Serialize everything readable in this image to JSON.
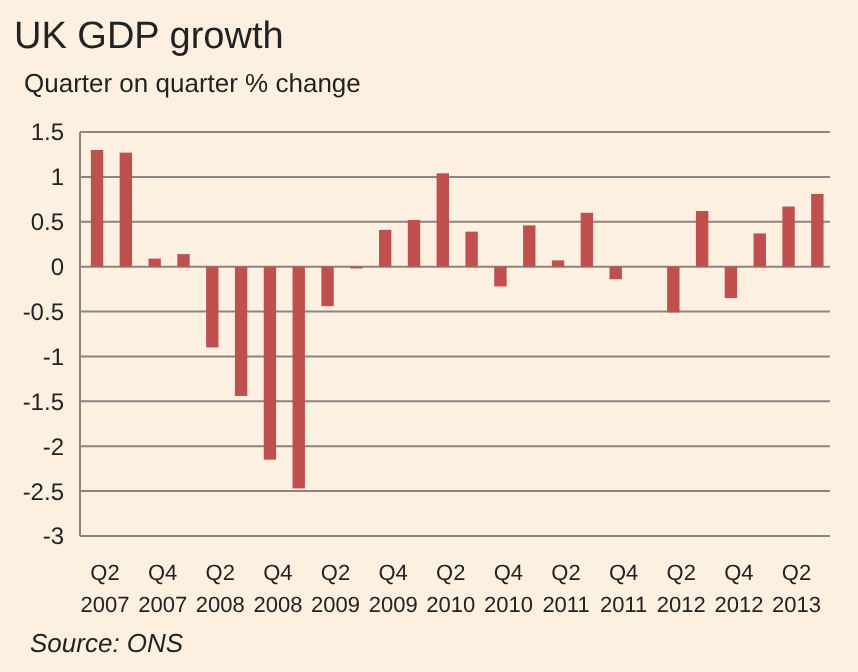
{
  "chart_data": {
    "type": "bar",
    "title": "UK GDP growth",
    "subtitle": "Quarter on quarter % change",
    "categories": [
      "Q2 2007",
      null,
      "Q4 2007",
      null,
      "Q2 2008",
      null,
      "Q4 2008",
      null,
      "Q2 2009",
      null,
      "Q4 2009",
      null,
      "Q2 2010",
      null,
      "Q4 2010",
      null,
      "Q2 2011",
      null,
      "Q4 2011",
      null,
      "Q2 2012",
      null,
      "Q4 2012",
      null,
      "Q2 2013",
      null
    ],
    "values": [
      1.3,
      1.27,
      0.09,
      0.14,
      -0.9,
      -1.44,
      -2.15,
      -2.47,
      -0.44,
      -0.02,
      0.41,
      0.52,
      1.04,
      0.39,
      -0.22,
      0.46,
      0.07,
      0.6,
      -0.14,
      0,
      -0.51,
      0.62,
      -0.35,
      0.37,
      0.67,
      0.81
    ],
    "color": "#c0504d",
    "ylim": [
      -3,
      1.5
    ],
    "yticks": [
      -3,
      -2.5,
      -2,
      -1.5,
      -1,
      -0.5,
      0,
      0.5,
      1,
      1.5
    ],
    "grid": "y",
    "annotations": [
      "Source: ONS"
    ]
  }
}
